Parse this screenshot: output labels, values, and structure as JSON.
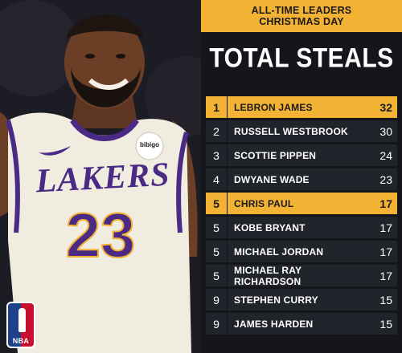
{
  "banner": {
    "line1": "ALL-TIME LEADERS",
    "line2": "CHRISTMAS DAY"
  },
  "title": "TOTAL STEALS",
  "jersey": {
    "team": "LAKERS",
    "number": "23",
    "sponsor": "bibigo"
  },
  "nba_logo_text": "NBA",
  "colors": {
    "gold": "#f2b234",
    "panel": "#15161b",
    "row": "#22242b",
    "lakers_purple": "#4b2a86"
  },
  "leaders": [
    {
      "rank": "1",
      "name": "LEBRON JAMES",
      "value": "32",
      "highlight": true
    },
    {
      "rank": "2",
      "name": "RUSSELL WESTBROOK",
      "value": "30",
      "highlight": false
    },
    {
      "rank": "3",
      "name": "SCOTTIE PIPPEN",
      "value": "24",
      "highlight": false
    },
    {
      "rank": "4",
      "name": "DWYANE WADE",
      "value": "23",
      "highlight": false
    },
    {
      "rank": "5",
      "name": "CHRIS PAUL",
      "value": "17",
      "highlight": true
    },
    {
      "rank": "5",
      "name": "KOBE BRYANT",
      "value": "17",
      "highlight": false
    },
    {
      "rank": "5",
      "name": "MICHAEL JORDAN",
      "value": "17",
      "highlight": false
    },
    {
      "rank": "5",
      "name": "MICHAEL RAY RICHARDSON",
      "value": "17",
      "highlight": false
    },
    {
      "rank": "9",
      "name": "STEPHEN CURRY",
      "value": "15",
      "highlight": false
    },
    {
      "rank": "9",
      "name": "JAMES HARDEN",
      "value": "15",
      "highlight": false
    }
  ]
}
